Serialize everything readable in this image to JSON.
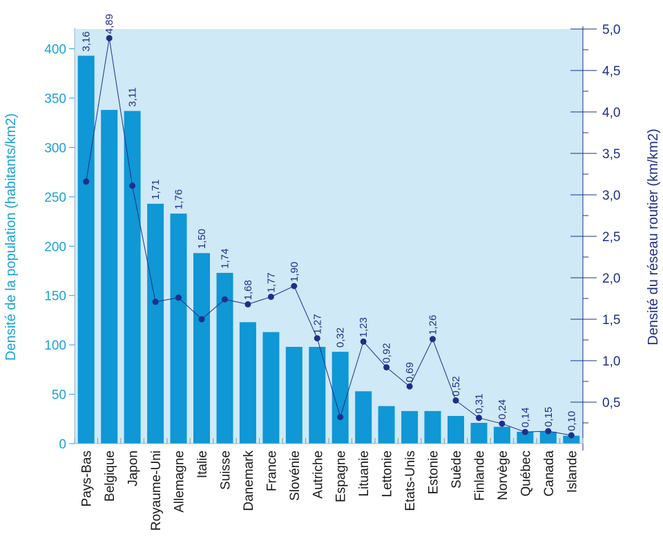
{
  "chart_data": {
    "type": "bar+line",
    "title": "",
    "categories": [
      "Pays-Bas",
      "Belgique",
      "Japon",
      "Royaume-Uni",
      "Allemagne",
      "Italie",
      "Suisse",
      "Danemark",
      "France",
      "Slovénie",
      "Autriche",
      "Espagne",
      "Lituanie",
      "Lettonie",
      "Etats-Unis",
      "Estonie",
      "Suède",
      "Finlande",
      "Norvège",
      "Québec",
      "Canada",
      "Islande"
    ],
    "series": [
      {
        "name": "Densité de la population (habitants/km2)",
        "type": "bar",
        "axis": "left",
        "color": "#0f97d6",
        "values": [
          393,
          338,
          337,
          243,
          233,
          193,
          173,
          123,
          113,
          98,
          98,
          93,
          53,
          38,
          33,
          33,
          28,
          21,
          17,
          12,
          12,
          8
        ]
      },
      {
        "name": "Densité du réseau routier (km/km2)",
        "type": "line",
        "axis": "right",
        "color": "#1e2f8a",
        "values": [
          3.16,
          4.89,
          3.11,
          1.71,
          1.76,
          1.5,
          1.74,
          1.68,
          1.77,
          1.9,
          1.27,
          0.32,
          1.23,
          0.92,
          0.69,
          1.26,
          0.52,
          0.31,
          0.24,
          0.14,
          0.15,
          0.1
        ],
        "labels": [
          "3,16",
          "4,89",
          "3,11",
          "1,71",
          "1,76",
          "1,50",
          "1,74",
          "1,68",
          "1,77",
          "1,90",
          "1,27",
          "0,32",
          "1,23",
          "0,92",
          "0,69",
          "1,26",
          "0,52",
          "0,31",
          "0,24",
          "0,14",
          "0,15",
          "0,10"
        ]
      }
    ],
    "y_left": {
      "label": "Densité de la population (habitants/km2)",
      "range": [
        0,
        420
      ],
      "ticks": [
        0,
        50,
        100,
        150,
        200,
        250,
        300,
        350,
        400
      ],
      "tick_labels": [
        "0",
        "50",
        "100",
        "150",
        "200",
        "250",
        "300",
        "350",
        "400"
      ]
    },
    "y_right": {
      "label": "Densité du réseau routier (km/km2)",
      "range": [
        0,
        5.0
      ],
      "ticks": [
        0.5,
        1.0,
        1.5,
        2.0,
        2.5,
        3.0,
        3.5,
        4.0,
        4.5,
        5.0
      ],
      "tick_labels": [
        "0,5",
        "1,0",
        "1,5",
        "2,0",
        "2,5",
        "3,0",
        "3,5",
        "4,0",
        "4,5",
        "5,0"
      ]
    },
    "colors": {
      "plot_background": "#cfe9f6",
      "bar": "#0f97d6",
      "line": "#1e2f8a",
      "left_axis": "#1ba3d6",
      "right_axis": "#1e2f8a"
    },
    "grid": false,
    "legend": "none"
  }
}
